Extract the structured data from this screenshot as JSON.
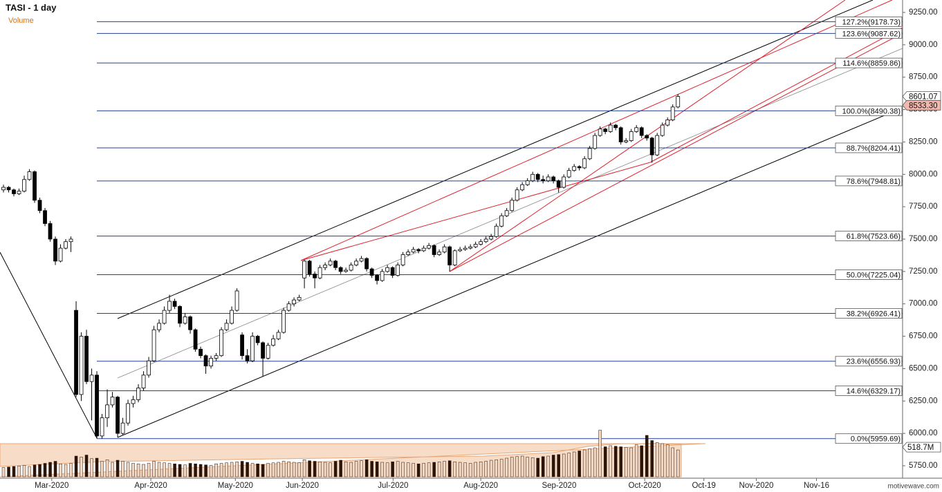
{
  "chart_data": {
    "type": "candlestick",
    "title": "TASI - 1 day",
    "subtitle": "Volume",
    "watermark": "motivewave.com",
    "up_color": "#ffffff",
    "down_color": "#000000",
    "fib_color": "#23408e",
    "volume_up_color": "#f2d7c2",
    "volume_down_color": "#2b1408",
    "xlim": [
      -0.67,
      173.3
    ],
    "xticks": [
      {
        "value": 9.3,
        "label": "Mar-2020"
      },
      {
        "value": 28.4,
        "label": "Apr-2020"
      },
      {
        "value": 44.7,
        "label": "May-2020"
      },
      {
        "value": 57.6,
        "label": "Jun-2020"
      },
      {
        "value": 75.1,
        "label": "Jul-2020"
      },
      {
        "value": 92,
        "label": "Aug-2020"
      },
      {
        "value": 107.1,
        "label": "Sep-2020"
      },
      {
        "value": 123.6,
        "label": "Oct-2020"
      },
      {
        "value": 135,
        "label": "Oct-19"
      },
      {
        "value": 145.1,
        "label": "Nov-2020"
      },
      {
        "value": 156.7,
        "label": "Nov-16"
      }
    ],
    "ylim": [
      5654,
      9346
    ],
    "yticks": [
      {
        "value": 5750,
        "label": "5750.00"
      },
      {
        "value": 6000,
        "label": "6000.00"
      },
      {
        "value": 6250,
        "label": "6250.00"
      },
      {
        "value": 6500,
        "label": "6500.00"
      },
      {
        "value": 6750,
        "label": "6750.00"
      },
      {
        "value": 7000,
        "label": "7000.00"
      },
      {
        "value": 7250,
        "label": "7250.00"
      },
      {
        "value": 7500,
        "label": "7500.00"
      },
      {
        "value": 7750,
        "label": "7750.00"
      },
      {
        "value": 8000,
        "label": "8000.00"
      },
      {
        "value": 8250,
        "label": "8250.00"
      },
      {
        "value": 8500,
        "label": "8500.00"
      },
      {
        "value": 8750,
        "label": "8750.00"
      },
      {
        "value": 9000,
        "label": "9000.00"
      },
      {
        "value": 9250,
        "label": "9250.00"
      }
    ],
    "fib_levels": [
      {
        "value": 9178.73,
        "label": "127.2%(9178.73)"
      },
      {
        "value": 9087.62,
        "label": "123.6%(9087.62)"
      },
      {
        "value": 8859.86,
        "label": "114.6%(8859.86)"
      },
      {
        "value": 8490.38,
        "label": "100.0%(8490.38)"
      },
      {
        "value": 8204.41,
        "label": "88.7%(8204.41)"
      },
      {
        "value": 7948.81,
        "label": "78.6%(7948.81)"
      },
      {
        "value": 7523.66,
        "label": "61.8%(7523.66)"
      },
      {
        "value": 7225.04,
        "label": "50.0%(7225.04)"
      },
      {
        "value": 6926.41,
        "label": "38.2%(6926.41)"
      },
      {
        "value": 6556.93,
        "label": "23.6%(6556.93)"
      },
      {
        "value": 6329.17,
        "label": "14.6%(6329.17)"
      },
      {
        "value": 5959.69,
        "label": "0.0%(5959.69)"
      }
    ],
    "price_labels": [
      {
        "value": 8601.07,
        "label": "8601.07"
      },
      {
        "value": 8533.3,
        "label": "8533.30"
      }
    ],
    "volume_label": {
      "value": 518.7,
      "label": "518.7M"
    },
    "candles": [
      [
        7880,
        7920,
        7860,
        7900
      ],
      [
        7900,
        7910,
        7860,
        7880
      ],
      [
        7880,
        7890,
        7830,
        7850
      ],
      [
        7850,
        7890,
        7840,
        7870
      ],
      [
        7870,
        7990,
        7860,
        7960
      ],
      [
        7960,
        8040,
        7950,
        8020
      ],
      [
        8020,
        8030,
        7780,
        7800
      ],
      [
        7800,
        7820,
        7700,
        7720
      ],
      [
        7720,
        7740,
        7600,
        7620
      ],
      [
        7620,
        7640,
        7480,
        7500
      ],
      [
        7500,
        7520,
        7300,
        7330
      ],
      [
        7330,
        7460,
        7320,
        7430
      ],
      [
        7430,
        7500,
        7420,
        7480
      ],
      [
        7480,
        7520,
        7400,
        7500
      ],
      [
        6950,
        7020,
        6280,
        6300
      ],
      [
        6300,
        6780,
        6250,
        6750
      ],
      [
        6750,
        6800,
        6380,
        6400
      ],
      [
        6400,
        6500,
        6100,
        6450
      ],
      [
        6450,
        6480,
        5960,
        5980
      ],
      [
        5980,
        6150,
        5960,
        6120
      ],
      [
        6120,
        6340,
        6050,
        6220
      ],
      [
        6220,
        6320,
        6200,
        6280
      ],
      [
        6280,
        6290,
        5970,
        6000
      ],
      [
        6000,
        6120,
        5990,
        6080
      ],
      [
        6080,
        6260,
        6060,
        6230
      ],
      [
        6230,
        6290,
        6200,
        6260
      ],
      [
        6260,
        6380,
        6240,
        6350
      ],
      [
        6350,
        6480,
        6330,
        6450
      ],
      [
        6450,
        6590,
        6430,
        6560
      ],
      [
        6560,
        6830,
        6550,
        6800
      ],
      [
        6800,
        6880,
        6780,
        6850
      ],
      [
        6850,
        6980,
        6840,
        6950
      ],
      [
        6950,
        7070,
        6930,
        7020
      ],
      [
        7020,
        7040,
        6960,
        6980
      ],
      [
        6980,
        6990,
        6820,
        6850
      ],
      [
        6850,
        6930,
        6840,
        6900
      ],
      [
        6900,
        6910,
        6770,
        6800
      ],
      [
        6800,
        6810,
        6630,
        6650
      ],
      [
        6650,
        6670,
        6580,
        6600
      ],
      [
        6600,
        6610,
        6460,
        6520
      ],
      [
        6520,
        6600,
        6500,
        6580
      ],
      [
        6580,
        6620,
        6560,
        6600
      ],
      [
        6600,
        6820,
        6590,
        6800
      ],
      [
        6800,
        6880,
        6790,
        6850
      ],
      [
        6850,
        6980,
        6840,
        6950
      ],
      [
        6950,
        7120,
        6940,
        7100
      ],
      [
        6760,
        6780,
        6570,
        6600
      ],
      [
        6600,
        6650,
        6540,
        6560
      ],
      [
        6560,
        6780,
        6550,
        6750
      ],
      [
        6750,
        6760,
        6680,
        6700
      ],
      [
        6700,
        6710,
        6440,
        6580
      ],
      [
        6580,
        6700,
        6570,
        6680
      ],
      [
        6680,
        6760,
        6670,
        6730
      ],
      [
        6730,
        6800,
        6720,
        6780
      ],
      [
        6780,
        6970,
        6770,
        6950
      ],
      [
        6950,
        7020,
        6940,
        7000
      ],
      [
        7000,
        7050,
        6980,
        7030
      ],
      [
        7030,
        7070,
        7020,
        7050
      ],
      [
        7200,
        7340,
        7120,
        7330
      ],
      [
        7330,
        7340,
        7210,
        7230
      ],
      [
        7230,
        7250,
        7120,
        7200
      ],
      [
        7200,
        7300,
        7190,
        7280
      ],
      [
        7280,
        7320,
        7260,
        7300
      ],
      [
        7300,
        7350,
        7290,
        7330
      ],
      [
        7330,
        7340,
        7260,
        7280
      ],
      [
        7280,
        7290,
        7230,
        7250
      ],
      [
        7250,
        7280,
        7240,
        7260
      ],
      [
        7260,
        7320,
        7250,
        7300
      ],
      [
        7300,
        7350,
        7290,
        7330
      ],
      [
        7330,
        7370,
        7320,
        7350
      ],
      [
        7350,
        7360,
        7250,
        7270
      ],
      [
        7270,
        7280,
        7200,
        7220
      ],
      [
        7220,
        7230,
        7150,
        7180
      ],
      [
        7180,
        7270,
        7170,
        7250
      ],
      [
        7250,
        7300,
        7240,
        7280
      ],
      [
        7280,
        7290,
        7200,
        7220
      ],
      [
        7220,
        7320,
        7210,
        7300
      ],
      [
        7300,
        7400,
        7290,
        7380
      ],
      [
        7380,
        7420,
        7370,
        7400
      ],
      [
        7400,
        7440,
        7390,
        7420
      ],
      [
        7420,
        7430,
        7390,
        7410
      ],
      [
        7410,
        7450,
        7400,
        7430
      ],
      [
        7430,
        7470,
        7420,
        7450
      ],
      [
        7450,
        7460,
        7360,
        7380
      ],
      [
        7380,
        7420,
        7370,
        7400
      ],
      [
        7400,
        7460,
        7390,
        7440
      ],
      [
        7440,
        7450,
        7250,
        7300
      ],
      [
        7300,
        7420,
        7290,
        7410
      ],
      [
        7410,
        7440,
        7400,
        7420
      ],
      [
        7420,
        7450,
        7410,
        7430
      ],
      [
        7430,
        7460,
        7420,
        7440
      ],
      [
        7440,
        7480,
        7430,
        7460
      ],
      [
        7460,
        7500,
        7450,
        7480
      ],
      [
        7480,
        7520,
        7470,
        7500
      ],
      [
        7500,
        7540,
        7490,
        7520
      ],
      [
        7520,
        7620,
        7510,
        7600
      ],
      [
        7600,
        7700,
        7590,
        7680
      ],
      [
        7680,
        7740,
        7670,
        7720
      ],
      [
        7720,
        7820,
        7710,
        7800
      ],
      [
        7800,
        7900,
        7790,
        7880
      ],
      [
        7880,
        7940,
        7870,
        7920
      ],
      [
        7920,
        7970,
        7910,
        7950
      ],
      [
        7950,
        8020,
        7940,
        8000
      ],
      [
        8000,
        8010,
        7940,
        7960
      ],
      [
        7960,
        7990,
        7930,
        7950
      ],
      [
        7950,
        8000,
        7940,
        7980
      ],
      [
        7980,
        7990,
        7930,
        7950
      ],
      [
        7950,
        7960,
        7860,
        7900
      ],
      [
        7900,
        8000,
        7890,
        7980
      ],
      [
        7980,
        8050,
        7970,
        8030
      ],
      [
        8030,
        8080,
        8020,
        8060
      ],
      [
        8060,
        8070,
        8030,
        8050
      ],
      [
        8050,
        8140,
        8040,
        8120
      ],
      [
        8120,
        8220,
        8110,
        8200
      ],
      [
        8200,
        8320,
        8190,
        8300
      ],
      [
        8300,
        8370,
        8290,
        8350
      ],
      [
        8350,
        8360,
        8310,
        8330
      ],
      [
        8330,
        8400,
        8320,
        8380
      ],
      [
        8380,
        8390,
        8340,
        8360
      ],
      [
        8360,
        8370,
        8230,
        8250
      ],
      [
        8250,
        8280,
        8240,
        8260
      ],
      [
        8260,
        8350,
        8250,
        8330
      ],
      [
        8330,
        8380,
        8320,
        8360
      ],
      [
        8360,
        8370,
        8280,
        8300
      ],
      [
        8300,
        8310,
        8260,
        8280
      ],
      [
        8280,
        8290,
        8090,
        8150
      ],
      [
        8150,
        8320,
        8140,
        8300
      ],
      [
        8300,
        8400,
        8290,
        8380
      ],
      [
        8380,
        8440,
        8370,
        8420
      ],
      [
        8420,
        8540,
        8410,
        8520
      ],
      [
        8520,
        8620,
        8510,
        8601.07
      ]
    ],
    "volume": [
      180,
      190,
      200,
      210,
      220,
      200,
      230,
      240,
      260,
      280,
      300,
      250,
      240,
      260,
      400,
      380,
      420,
      350,
      360,
      300,
      330,
      280,
      320,
      300,
      280,
      260,
      250,
      240,
      260,
      300,
      280,
      270,
      260,
      250,
      240,
      230,
      260,
      250,
      240,
      230,
      220,
      250,
      260,
      270,
      280,
      290,
      300,
      280,
      260,
      250,
      240,
      260,
      270,
      280,
      300,
      290,
      280,
      270,
      330,
      310,
      300,
      290,
      280,
      270,
      300,
      320,
      290,
      280,
      300,
      310,
      330,
      300,
      290,
      280,
      270,
      290,
      300,
      280,
      270,
      260,
      250,
      260,
      270,
      280,
      290,
      300,
      310,
      290,
      280,
      270,
      260,
      280,
      290,
      300,
      320,
      330,
      340,
      360,
      380,
      390,
      400,
      380,
      370,
      360,
      390,
      400,
      420,
      430,
      440,
      460,
      480,
      500,
      520,
      540,
      560,
      900,
      580,
      600,
      590,
      580,
      570,
      560,
      620,
      600,
      800,
      700,
      660,
      640,
      620,
      560,
      518.7
    ]
  }
}
